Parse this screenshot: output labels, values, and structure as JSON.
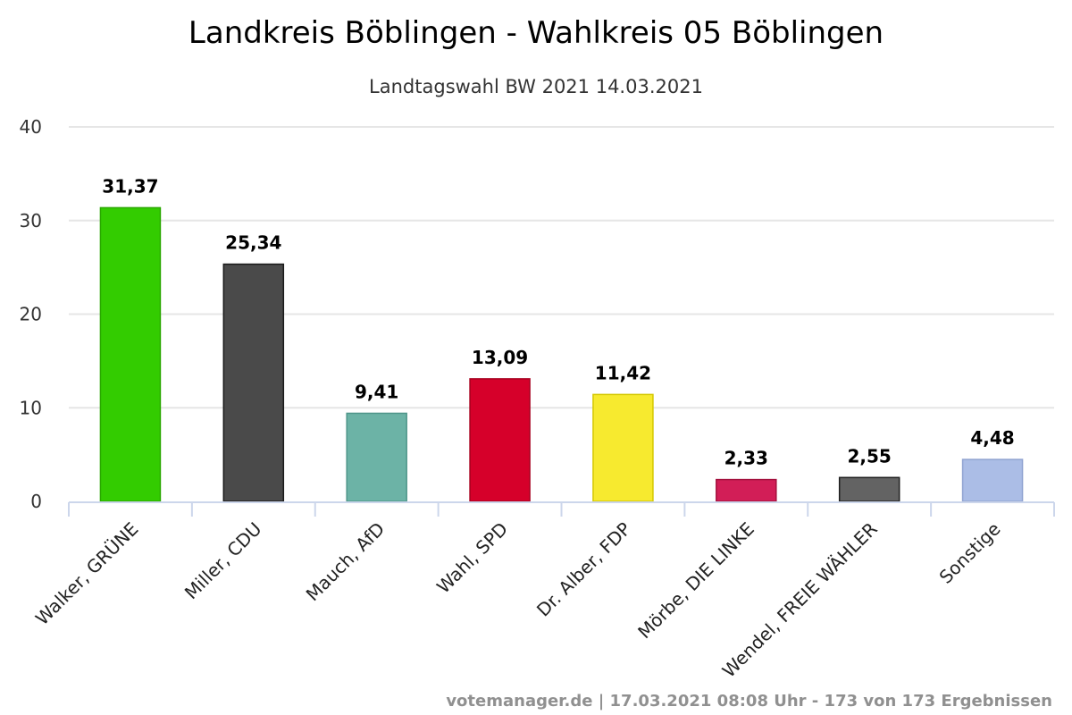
{
  "chart_data": {
    "type": "bar",
    "title": "Landkreis Böblingen - Wahlkreis 05 Böblingen",
    "subtitle": "Landtagswahl BW 2021 14.03.2021",
    "xlabel": "",
    "ylabel": "",
    "ylim": [
      0,
      40
    ],
    "yticks": [
      0,
      10,
      20,
      30,
      40
    ],
    "grid": true,
    "legend": "none",
    "categories": [
      "Walker, GRÜNE",
      "Miller, CDU",
      "Mauch, AfD",
      "Wahl, SPD",
      "Dr. Alber, FDP",
      "Mörbe, DIE LINKE",
      "Wendel, FREIE WÄHLER",
      "Sonstige"
    ],
    "values": [
      31.37,
      25.34,
      9.41,
      13.09,
      11.42,
      2.33,
      2.55,
      4.48
    ],
    "value_labels": [
      "31,37",
      "25,34",
      "9,41",
      "13,09",
      "11,42",
      "2,33",
      "2,55",
      "4,48"
    ],
    "colors": [
      "#33cc00",
      "#4a4a4a",
      "#6cb3a6",
      "#d6002a",
      "#f7ea2f",
      "#d21e57",
      "#636363",
      "#abbde6"
    ],
    "border_colors": [
      "#2aa800",
      "#1a1a1a",
      "#4f968a",
      "#a8001f",
      "#d4c800",
      "#a3103d",
      "#1f1f1f",
      "#90a3d1"
    ]
  },
  "credits": "votemanager.de | 17.03.2021 08:08 Uhr - 173 von 173 Ergebnissen"
}
